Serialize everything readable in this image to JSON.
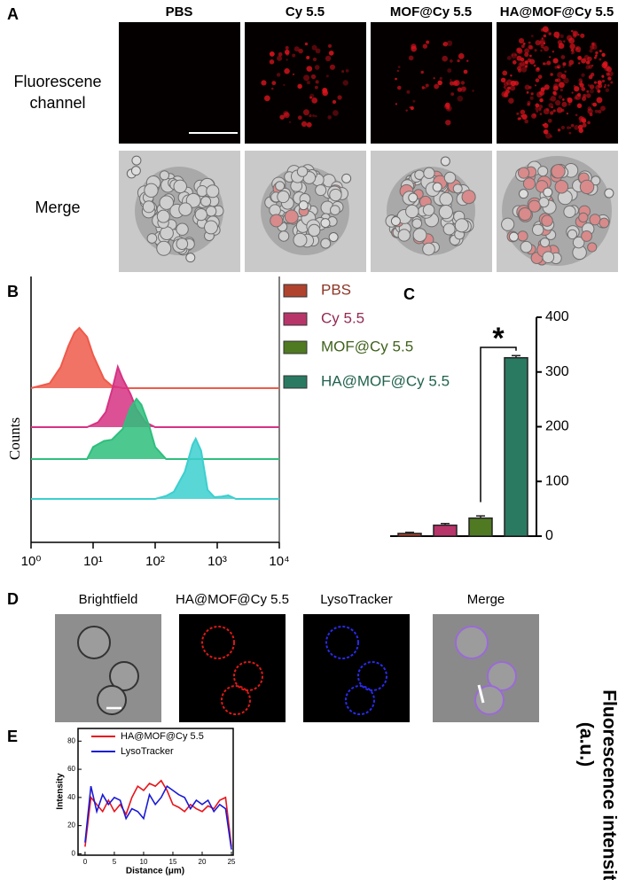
{
  "panels": {
    "a": {
      "label": "A",
      "columns": [
        "PBS",
        "Cy 5.5",
        "MOF@Cy 5.5",
        "HA@MOF@Cy 5.5"
      ],
      "rows": [
        "Fluorescene channel",
        "Merge"
      ]
    },
    "d": {
      "label": "D",
      "columns": [
        "Brightfield",
        "HA@MOF@Cy 5.5",
        "LysoTracker",
        "Merge"
      ]
    }
  },
  "chart_data": [
    {
      "type": "ridge",
      "panel": "B",
      "ylabel": "Counts",
      "log_x": true,
      "xlim": [
        1,
        10000
      ],
      "xticks": [
        {
          "value": 1,
          "label": "10⁰"
        },
        {
          "value": 10,
          "label": "10¹"
        },
        {
          "value": 100,
          "label": "10²"
        },
        {
          "value": 1000,
          "label": "10³"
        },
        {
          "value": 10000,
          "label": "10⁴"
        }
      ],
      "series": [
        {
          "color": "#ef5a4b",
          "x": [
            1,
            2,
            3,
            4,
            5,
            6,
            8,
            10,
            15,
            20,
            30,
            10000
          ],
          "values": [
            0,
            8,
            35,
            70,
            92,
            100,
            85,
            55,
            15,
            4,
            0,
            0
          ]
        },
        {
          "color": "#d63384",
          "x": [
            1,
            8,
            12,
            16,
            20,
            25,
            30,
            40,
            50,
            70,
            100,
            10000
          ],
          "values": [
            0,
            0,
            8,
            25,
            60,
            100,
            80,
            55,
            30,
            8,
            0,
            0
          ]
        },
        {
          "color": "#2ebf7d",
          "x": [
            1,
            8,
            10,
            15,
            20,
            30,
            40,
            50,
            60,
            80,
            100,
            150,
            10000
          ],
          "values": [
            0,
            0,
            20,
            30,
            32,
            50,
            85,
            100,
            90,
            55,
            20,
            0,
            0
          ]
        },
        {
          "color": "#3ccfcf",
          "x": [
            1,
            100,
            150,
            200,
            300,
            400,
            450,
            550,
            700,
            900,
            1200,
            1500,
            2000,
            10000
          ],
          "values": [
            0,
            0,
            5,
            12,
            45,
            90,
            100,
            80,
            15,
            3,
            4,
            6,
            0,
            0
          ]
        }
      ]
    },
    {
      "type": "bar",
      "panel": "C",
      "ylabel": [
        "Fluorescence intensity",
        "(a.u.)"
      ],
      "annotation": "*",
      "ylim": [
        0,
        400
      ],
      "yticks": [
        0,
        100,
        200,
        300,
        400
      ],
      "series": [
        {
          "name": "PBS",
          "color": "#b0432e",
          "values": [
            5
          ],
          "errors": [
            2
          ]
        },
        {
          "name": "Cy 5.5",
          "color": "#b8356a",
          "values": [
            20
          ],
          "errors": [
            3
          ]
        },
        {
          "name": "MOF@Cy 5.5",
          "color": "#4f7a22",
          "values": [
            33
          ],
          "errors": [
            4
          ]
        },
        {
          "name": "HA@MOF@Cy 5.5",
          "color": "#2a7a62",
          "values": [
            326
          ],
          "errors": [
            4
          ]
        }
      ]
    },
    {
      "type": "line",
      "panel": "E",
      "xlabel": "Distance (μm)",
      "ylabel": "Intensity",
      "xlim": [
        -1.2,
        25.3
      ],
      "ylim": [
        -1,
        89
      ],
      "xticks": [
        0,
        5,
        10,
        15,
        20,
        25
      ],
      "yticks": [
        0,
        20,
        40,
        60,
        80
      ],
      "x": [
        0,
        1,
        2,
        3,
        4,
        5,
        6,
        7,
        8,
        9,
        10,
        11,
        12,
        13,
        14,
        15,
        16,
        17,
        18,
        19,
        20,
        21,
        22,
        23,
        24,
        25
      ],
      "series": [
        {
          "name": "HA@MOF@Cy 5.5",
          "color": "#e8141b",
          "values": [
            5,
            40,
            35,
            30,
            38,
            30,
            35,
            28,
            40,
            48,
            45,
            50,
            48,
            52,
            45,
            35,
            33,
            30,
            35,
            32,
            30,
            34,
            32,
            38,
            40,
            5
          ]
        },
        {
          "name": "LysoTracker",
          "color": "#1a1ad6",
          "values": [
            8,
            48,
            30,
            42,
            35,
            40,
            38,
            25,
            32,
            30,
            25,
            42,
            35,
            40,
            48,
            45,
            42,
            40,
            32,
            38,
            35,
            38,
            30,
            35,
            32,
            3
          ]
        }
      ]
    }
  ]
}
